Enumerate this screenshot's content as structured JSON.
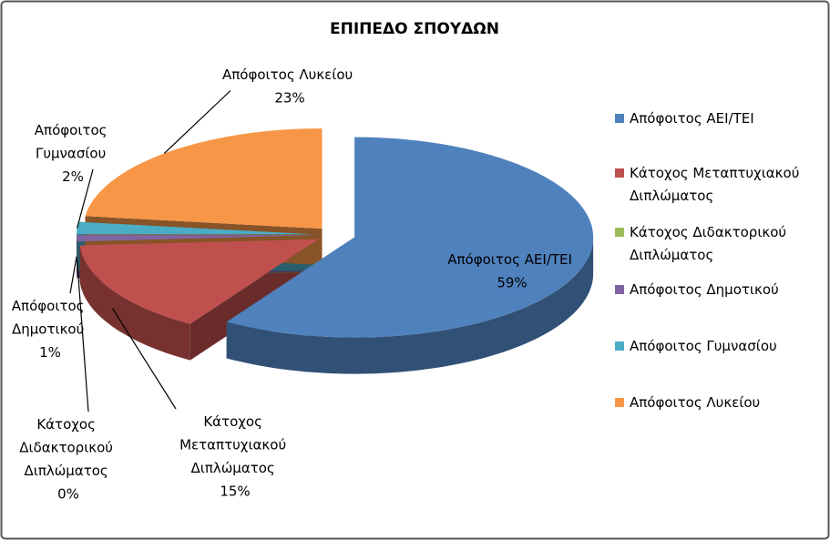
{
  "chart_data": {
    "type": "pie",
    "title": "ΕΠΙΠΕΔΟ ΣΠΟΥΔΩΝ",
    "categories": [
      "Απόφοιτος ΑΕΙ/ΤΕΙ",
      "Κάτοχος Μεταπτυχιακού Διπλώματος",
      "Κάτοχος Διδακτορικού Διπλώματος",
      "Απόφοιτος Δημοτικού",
      "Απόφοιτος Γυμνασίου",
      "Απόφοιτος Λυκείου"
    ],
    "values": [
      59,
      15,
      0,
      1,
      2,
      23
    ],
    "colors": [
      "#4f81bd",
      "#c0504d",
      "#9bbb59",
      "#8064a2",
      "#4bacc6",
      "#f79646"
    ],
    "legend": "right"
  }
}
